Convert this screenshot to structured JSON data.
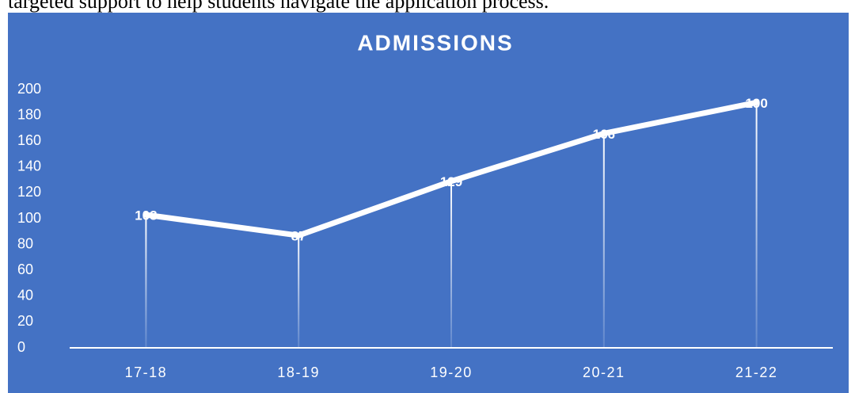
{
  "text_above": "targeted support to help students navigate the application process.",
  "chart_data": {
    "type": "line",
    "title": "ADMISSIONS",
    "categories": [
      "17-18",
      "18-19",
      "19-20",
      "20-21",
      "21-22"
    ],
    "values": [
      103,
      87,
      129,
      166,
      190
    ],
    "color": "#ffffff",
    "background": "#4472c4",
    "ylim": [
      0,
      200
    ],
    "yticks": [
      0,
      20,
      40,
      60,
      80,
      100,
      120,
      140,
      160,
      180,
      200
    ],
    "grid": false,
    "drop_lines": true,
    "data_labels": true
  }
}
